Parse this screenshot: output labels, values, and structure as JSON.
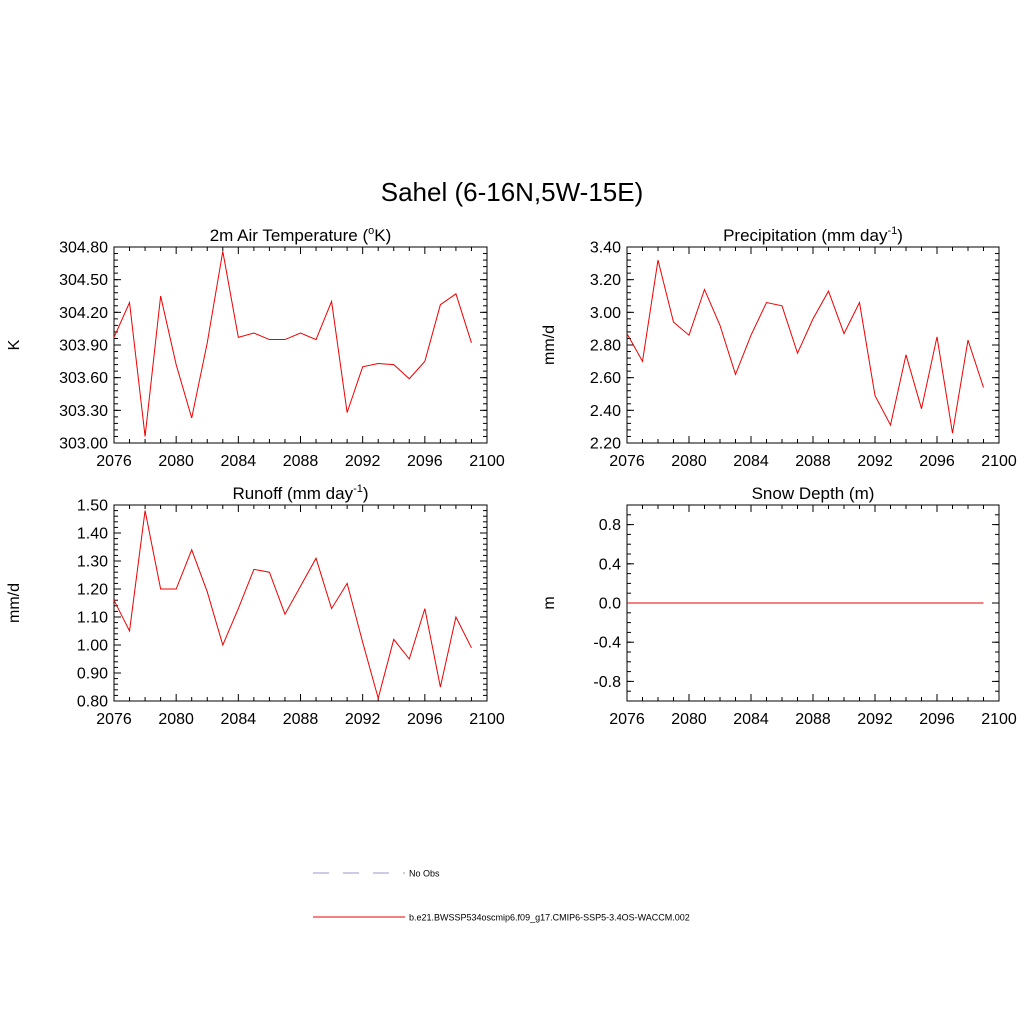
{
  "figure": {
    "title": "Sahel (6-16N,5W-15E)"
  },
  "legend": {
    "items": [
      {
        "label": "No Obs",
        "color": "#9999cc",
        "style": "dashed"
      },
      {
        "label": "b.e21.BWSSP534oscmip6.f09_g17.CMIP6-SSP5-3.4OS-WACCM.002",
        "color": "#ee0000",
        "style": "solid"
      }
    ]
  },
  "chart_data": [
    {
      "type": "line",
      "title_parts": [
        "2m Air Temperature (",
        "o",
        "K)"
      ],
      "ylabel": "K",
      "xlabel": "",
      "xlim": [
        2076,
        2100
      ],
      "ylim": [
        303.0,
        304.8
      ],
      "xticks": [
        "2076",
        "2080",
        "2084",
        "2088",
        "2092",
        "2096",
        "2100"
      ],
      "yticks": [
        "303.00",
        "303.30",
        "303.60",
        "303.90",
        "304.20",
        "304.50",
        "304.80"
      ],
      "x": [
        2076,
        2077,
        2078,
        2079,
        2080,
        2081,
        2082,
        2083,
        2084,
        2085,
        2086,
        2087,
        2088,
        2089,
        2090,
        2091,
        2092,
        2093,
        2094,
        2095,
        2096,
        2097,
        2098,
        2099
      ],
      "series": [
        {
          "name": "b.e21.BWSSP534oscmip6.f09_g17.CMIP6-SSP5-3.4OS-WACCM.002",
          "color": "#ee0000",
          "values": [
            303.97,
            304.29,
            303.06,
            304.35,
            303.72,
            303.23,
            303.92,
            304.76,
            303.97,
            304.01,
            303.95,
            303.95,
            304.01,
            303.95,
            304.3,
            303.28,
            303.7,
            303.73,
            303.72,
            303.59,
            303.75,
            304.27,
            304.37,
            303.92
          ]
        }
      ]
    },
    {
      "type": "line",
      "title_parts": [
        "Precipitation (mm day",
        "-1",
        ")"
      ],
      "ylabel": "mm/d",
      "xlabel": "",
      "xlim": [
        2076,
        2100
      ],
      "ylim": [
        2.2,
        3.4
      ],
      "xticks": [
        "2076",
        "2080",
        "2084",
        "2088",
        "2092",
        "2096",
        "2100"
      ],
      "yticks": [
        "2.20",
        "2.40",
        "2.60",
        "2.80",
        "3.00",
        "3.20",
        "3.40"
      ],
      "x": [
        2076,
        2077,
        2078,
        2079,
        2080,
        2081,
        2082,
        2083,
        2084,
        2085,
        2086,
        2087,
        2088,
        2089,
        2090,
        2091,
        2092,
        2093,
        2094,
        2095,
        2096,
        2097,
        2098,
        2099
      ],
      "series": [
        {
          "name": "b.e21.BWSSP534oscmip6.f09_g17.CMIP6-SSP5-3.4OS-WACCM.002",
          "color": "#ee0000",
          "values": [
            2.87,
            2.7,
            3.32,
            2.94,
            2.86,
            3.14,
            2.92,
            2.62,
            2.86,
            3.06,
            3.04,
            2.75,
            2.96,
            3.13,
            2.87,
            3.06,
            2.49,
            2.31,
            2.74,
            2.41,
            2.85,
            2.26,
            2.83,
            2.54
          ]
        }
      ]
    },
    {
      "type": "line",
      "title_parts": [
        "Runoff (mm day",
        "-1",
        ")"
      ],
      "ylabel": "mm/d",
      "xlabel": "",
      "xlim": [
        2076,
        2100
      ],
      "ylim": [
        0.8,
        1.5
      ],
      "xticks": [
        "2076",
        "2080",
        "2084",
        "2088",
        "2092",
        "2096",
        "2100"
      ],
      "yticks": [
        "0.80",
        "0.90",
        "1.00",
        "1.10",
        "1.20",
        "1.30",
        "1.40",
        "1.50"
      ],
      "x": [
        2076,
        2077,
        2078,
        2079,
        2080,
        2081,
        2082,
        2083,
        2084,
        2085,
        2086,
        2087,
        2088,
        2089,
        2090,
        2091,
        2092,
        2093,
        2094,
        2095,
        2096,
        2097,
        2098,
        2099
      ],
      "series": [
        {
          "name": "b.e21.BWSSP534oscmip6.f09_g17.CMIP6-SSP5-3.4OS-WACCM.002",
          "color": "#ee0000",
          "values": [
            1.16,
            1.05,
            1.48,
            1.2,
            1.2,
            1.34,
            1.19,
            1.0,
            1.13,
            1.27,
            1.26,
            1.11,
            1.21,
            1.31,
            1.13,
            1.22,
            1.01,
            0.81,
            1.02,
            0.95,
            1.13,
            0.85,
            1.1,
            0.99
          ]
        }
      ]
    },
    {
      "type": "line",
      "title_parts": [
        "Snow Depth (m)"
      ],
      "ylabel": "m",
      "xlabel": "",
      "xlim": [
        2076,
        2100
      ],
      "ylim": [
        -1.0,
        1.0
      ],
      "xticks": [
        "2076",
        "2080",
        "2084",
        "2088",
        "2092",
        "2096",
        "2100"
      ],
      "yticks": [
        "-0.8",
        "-0.4",
        "0.0",
        "0.4",
        "0.8"
      ],
      "x": [
        2076,
        2077,
        2078,
        2079,
        2080,
        2081,
        2082,
        2083,
        2084,
        2085,
        2086,
        2087,
        2088,
        2089,
        2090,
        2091,
        2092,
        2093,
        2094,
        2095,
        2096,
        2097,
        2098,
        2099
      ],
      "series": [
        {
          "name": "b.e21.BWSSP534oscmip6.f09_g17.CMIP6-SSP5-3.4OS-WACCM.002",
          "color": "#ee0000",
          "values": [
            0,
            0,
            0,
            0,
            0,
            0,
            0,
            0,
            0,
            0,
            0,
            0,
            0,
            0,
            0,
            0,
            0,
            0,
            0,
            0,
            0,
            0,
            0,
            0
          ]
        }
      ]
    }
  ]
}
